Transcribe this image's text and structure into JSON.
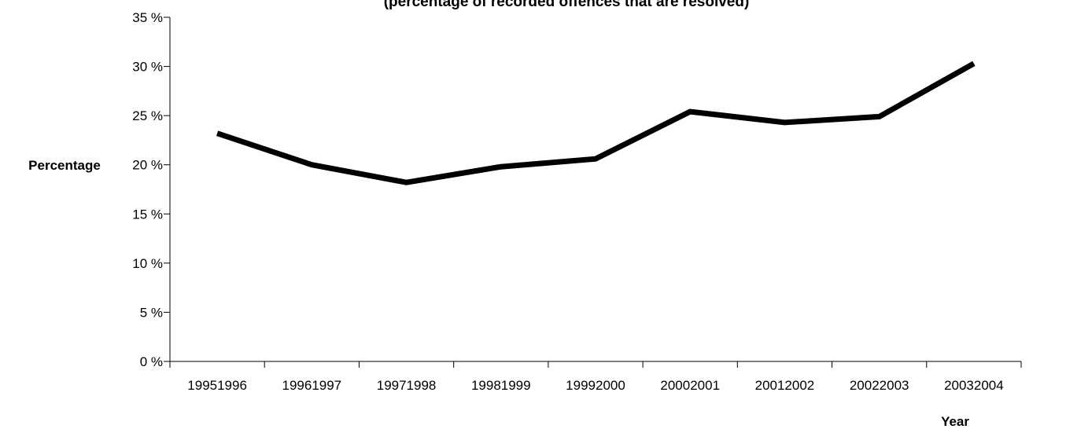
{
  "chart_data": {
    "type": "line",
    "title": "(percentage of recorded offences that are resolved)",
    "xlabel": "Year",
    "ylabel": "Percentage",
    "categories": [
      "19951996",
      "19961997",
      "19971998",
      "19981999",
      "19992000",
      "20002001",
      "20012002",
      "20022003",
      "20032004"
    ],
    "series": [
      {
        "values": [
          23.2,
          20.0,
          18.2,
          19.8,
          20.6,
          25.4,
          24.3,
          24.9,
          30.3
        ]
      }
    ],
    "ylim": [
      0,
      35
    ],
    "yticks": [
      0,
      5,
      10,
      15,
      20,
      25,
      30,
      35
    ],
    "ytick_suffix": " %",
    "grid": false,
    "legend": "none",
    "line_color": "#000000"
  }
}
